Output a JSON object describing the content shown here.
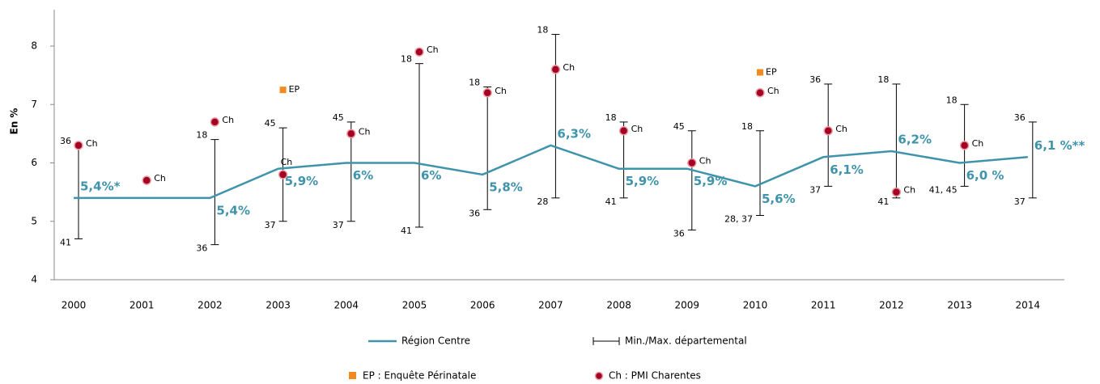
{
  "chart_data": {
    "type": "line",
    "y_label": "En %",
    "categories": [
      "2000",
      "2001",
      "2002",
      "2003",
      "2004",
      "2005",
      "2006",
      "2007",
      "2008",
      "2009",
      "2010",
      "2011",
      "2012",
      "2013",
      "2014"
    ],
    "ylim": [
      4,
      8
    ],
    "yticks": [
      4,
      5,
      6,
      7,
      8
    ],
    "series": [
      {
        "name": "Région Centre",
        "color": "#3f93ab",
        "values": [
          5.4,
          5.4,
          5.4,
          5.9,
          6,
          6,
          5.8,
          6.3,
          5.9,
          5.9,
          5.6,
          6.1,
          6.2,
          6.0,
          6.1
        ],
        "value_labels": [
          "5,4%*",
          null,
          "5,4%",
          "5,9%",
          "6%",
          "6%",
          "5,8%",
          "6,3%",
          "5,9%",
          "5,9%",
          "5,6%",
          "6,1%",
          "6,2%",
          "6,0 %",
          "6,1 %**"
        ]
      }
    ],
    "range": {
      "name": "Min./Max. départemental",
      "color": "#000000",
      "min": [
        4.7,
        null,
        4.6,
        5.0,
        5.0,
        4.9,
        5.2,
        5.4,
        5.4,
        4.85,
        5.1,
        5.6,
        5.4,
        5.6,
        5.4
      ],
      "max": [
        6.3,
        null,
        6.4,
        6.6,
        6.7,
        7.7,
        7.3,
        8.2,
        6.7,
        6.55,
        6.55,
        7.35,
        7.35,
        7.0,
        6.7
      ],
      "min_labels": [
        "41",
        null,
        "36",
        "37",
        "37",
        "41",
        "36",
        "28",
        "41",
        "36",
        "28, 37",
        "37",
        "41",
        "41, 45",
        "37"
      ],
      "max_labels": [
        "36",
        null,
        "18",
        "45",
        "45",
        "18",
        "18",
        "18",
        "18",
        "45",
        "18",
        "36",
        "18",
        "18",
        "36"
      ]
    },
    "points": [
      {
        "name": "Ch : PMI Charentes",
        "point_label": "Ch",
        "color": "#a50021",
        "values": [
          6.3,
          5.7,
          6.7,
          5.8,
          6.5,
          7.9,
          7.2,
          7.6,
          6.55,
          6.0,
          7.2,
          6.55,
          5.5,
          6.3,
          null
        ]
      },
      {
        "name": "EP : Enquête Périnatale",
        "point_label": "EP",
        "color": "#f28a1e",
        "values": [
          null,
          null,
          null,
          7.25,
          null,
          null,
          null,
          null,
          null,
          null,
          7.55,
          null,
          null,
          null,
          null
        ]
      }
    ]
  }
}
